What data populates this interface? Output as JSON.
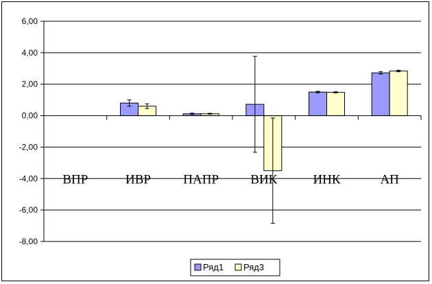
{
  "chart_data": {
    "type": "bar",
    "categories": [
      "ВПР",
      "ИВР",
      "ПАПР",
      "ВИК",
      "ИНК",
      "АП"
    ],
    "series": [
      {
        "name": "Ряд1",
        "color": "#9999ff",
        "values": [
          0,
          0.8,
          0.12,
          0.72,
          1.5,
          2.72
        ],
        "error": [
          0,
          0.2,
          0.04,
          3.05,
          0.05,
          0.08
        ]
      },
      {
        "name": "Ряд3",
        "color": "#ffffcc",
        "values": [
          0,
          0.6,
          0.12,
          -3.5,
          1.48,
          2.84
        ],
        "error": [
          0,
          0.15,
          0.03,
          3.35,
          0.04,
          0.05
        ]
      }
    ],
    "ylim": [
      -8,
      6
    ],
    "yticks": [
      "-8,00",
      "-6,00",
      "-4,00",
      "-2,00",
      "0,00",
      "2,00",
      "4,00",
      "6,00"
    ],
    "grid": true,
    "legend": "bottom"
  }
}
